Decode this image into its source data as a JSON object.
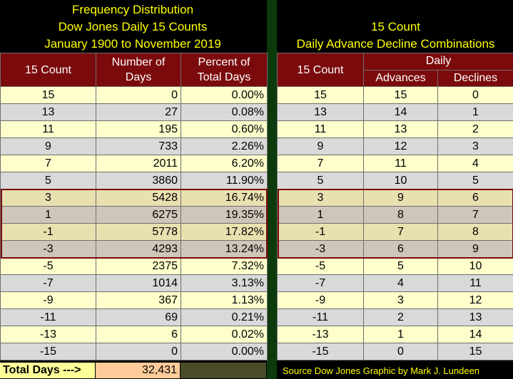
{
  "left_title": [
    "Frequency Distribution",
    "Dow Jones Daily 15 Counts",
    "January 1900 to November 2019"
  ],
  "right_title": [
    "15 Count",
    "Daily Advance Decline Combinations"
  ],
  "left_headers": {
    "count": "15 Count",
    "days": [
      "Number of",
      "Days"
    ],
    "percent": [
      "Percent of",
      "Total Days"
    ]
  },
  "right_headers": {
    "count": "15 Count",
    "daily": "Daily",
    "advances": "Advances",
    "declines": "Declines"
  },
  "left_rows": [
    {
      "count": "15",
      "days": "0",
      "pct": "0.00%"
    },
    {
      "count": "13",
      "days": "27",
      "pct": "0.08%"
    },
    {
      "count": "11",
      "days": "195",
      "pct": "0.60%"
    },
    {
      "count": "9",
      "days": "733",
      "pct": "2.26%"
    },
    {
      "count": "7",
      "days": "2011",
      "pct": "6.20%"
    },
    {
      "count": "5",
      "days": "3860",
      "pct": "11.90%"
    },
    {
      "count": "3",
      "days": "5428",
      "pct": "16.74%"
    },
    {
      "count": "1",
      "days": "6275",
      "pct": "19.35%"
    },
    {
      "count": "-1",
      "days": "5778",
      "pct": "17.82%"
    },
    {
      "count": "-3",
      "days": "4293",
      "pct": "13.24%"
    },
    {
      "count": "-5",
      "days": "2375",
      "pct": "7.32%"
    },
    {
      "count": "-7",
      "days": "1014",
      "pct": "3.13%"
    },
    {
      "count": "-9",
      "days": "367",
      "pct": "1.13%"
    },
    {
      "count": "-11",
      "days": "69",
      "pct": "0.21%"
    },
    {
      "count": "-13",
      "days": "6",
      "pct": "0.02%"
    },
    {
      "count": "-15",
      "days": "0",
      "pct": "0.00%"
    }
  ],
  "right_rows": [
    {
      "count": "15",
      "adv": "15",
      "dec": "0"
    },
    {
      "count": "13",
      "adv": "14",
      "dec": "1"
    },
    {
      "count": "11",
      "adv": "13",
      "dec": "2"
    },
    {
      "count": "9",
      "adv": "12",
      "dec": "3"
    },
    {
      "count": "7",
      "adv": "11",
      "dec": "4"
    },
    {
      "count": "5",
      "adv": "10",
      "dec": "5"
    },
    {
      "count": "3",
      "adv": "9",
      "dec": "6"
    },
    {
      "count": "1",
      "adv": "8",
      "dec": "7"
    },
    {
      "count": "-1",
      "adv": "7",
      "dec": "8"
    },
    {
      "count": "-3",
      "adv": "6",
      "dec": "9"
    },
    {
      "count": "-5",
      "adv": "5",
      "dec": "10"
    },
    {
      "count": "-7",
      "adv": "4",
      "dec": "11"
    },
    {
      "count": "-9",
      "adv": "3",
      "dec": "12"
    },
    {
      "count": "-11",
      "adv": "2",
      "dec": "13"
    },
    {
      "count": "-13",
      "adv": "1",
      "dec": "14"
    },
    {
      "count": "-15",
      "adv": "0",
      "dec": "15"
    }
  ],
  "highlight_rows": [
    6,
    9
  ],
  "total": {
    "label": "Total Days --->",
    "value": "32,431"
  },
  "credit": "Source Dow Jones   Graphic by Mark J. Lundeen",
  "colors": {
    "title": "#ffff00",
    "header": "#7b0a0c",
    "row_odd": "#ffffcc",
    "row_even": "#d9d9d9",
    "divider": "#0d3a0d"
  }
}
